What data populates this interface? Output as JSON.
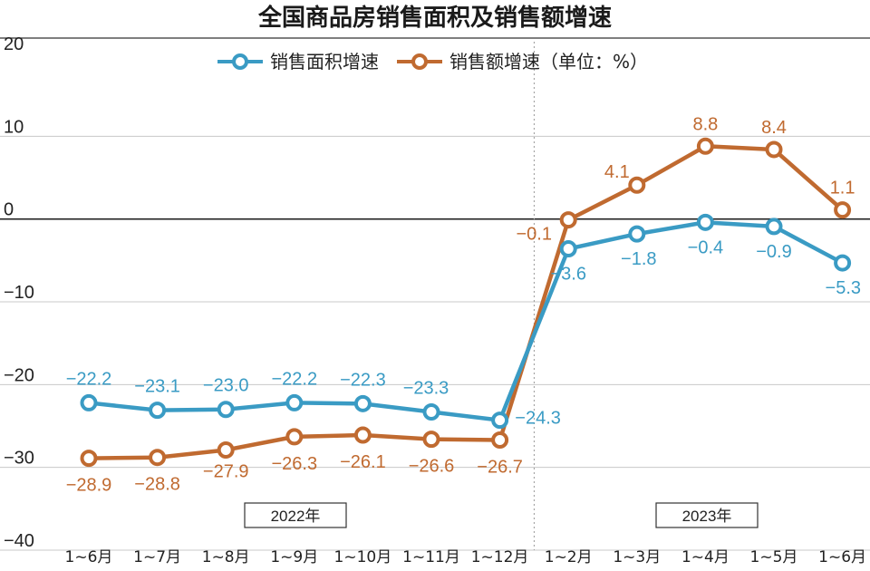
{
  "chart_data": {
    "type": "line",
    "title": "全国商品房销售面积及销售额增速",
    "categories": [
      "1~6月",
      "1~7月",
      "1~8月",
      "1~9月",
      "1~10月",
      "1~11月",
      "1~12月",
      "1~2月",
      "1~3月",
      "1~4月",
      "1~5月",
      "1~6月"
    ],
    "series": [
      {
        "name": "销售面积增速",
        "color": "#3a9bc4",
        "values": [
          -22.2,
          -23.1,
          -23.0,
          -22.2,
          -22.3,
          -23.3,
          -24.3,
          -3.6,
          -1.8,
          -0.4,
          -0.9,
          -5.3
        ],
        "labels": [
          "−22.2",
          "−23.1",
          "−23.0",
          "−22.2",
          "−22.3",
          "−23.3",
          "−24.3",
          "−3.6",
          "−1.8",
          "−0.4",
          "−0.9",
          "−5.3"
        ]
      },
      {
        "name": "销售额增速（单位：%）",
        "color": "#c06a30",
        "values": [
          -28.9,
          -28.8,
          -27.9,
          -26.3,
          -26.1,
          -26.6,
          -26.7,
          -0.1,
          4.1,
          8.8,
          8.4,
          1.1
        ],
        "labels": [
          "−28.9",
          "−28.8",
          "−27.9",
          "−26.3",
          "−26.1",
          "−26.6",
          "−26.7",
          "−0.1",
          "4.1",
          "8.8",
          "8.4",
          "1.1"
        ]
      }
    ],
    "ylim": [
      -40,
      20
    ],
    "yticks": [
      "20",
      "10",
      "0",
      "−10",
      "−20",
      "−30",
      "−40"
    ],
    "ytick_values": [
      20,
      10,
      0,
      -10,
      -20,
      -30,
      -40
    ],
    "years": [
      "2022年",
      "2023年"
    ],
    "legend": "top-center",
    "grid": true
  }
}
